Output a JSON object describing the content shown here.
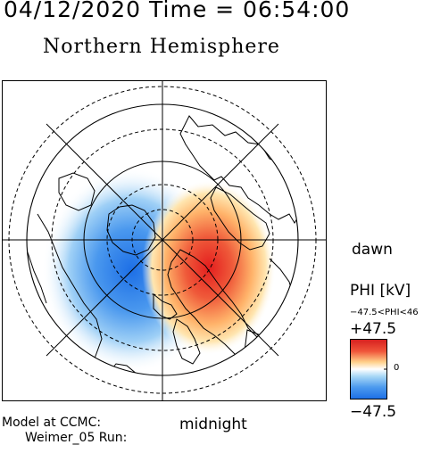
{
  "header": {
    "timestamp": "04/12/2020 Time = 06:54:00",
    "hemisphere": "Northern Hemisphere"
  },
  "map": {
    "dawn_label": "dawn",
    "midnight_label": "midnight"
  },
  "colorbar": {
    "title": "PHI [kV]",
    "range_text": "−47.5<PHI<46",
    "max_label": "+47.5",
    "zero_label": "0",
    "min_label": "−47.5",
    "colors": {
      "positive": "#e8202a",
      "negative": "#1e73e8",
      "neutral": "#ffffff",
      "mid_positive": "#ffd27a",
      "mid_negative": "#9ad0f5"
    }
  },
  "footer": {
    "model_line1": "Model at CCMC:",
    "model_line2": "Weimer_05 Run:"
  }
}
